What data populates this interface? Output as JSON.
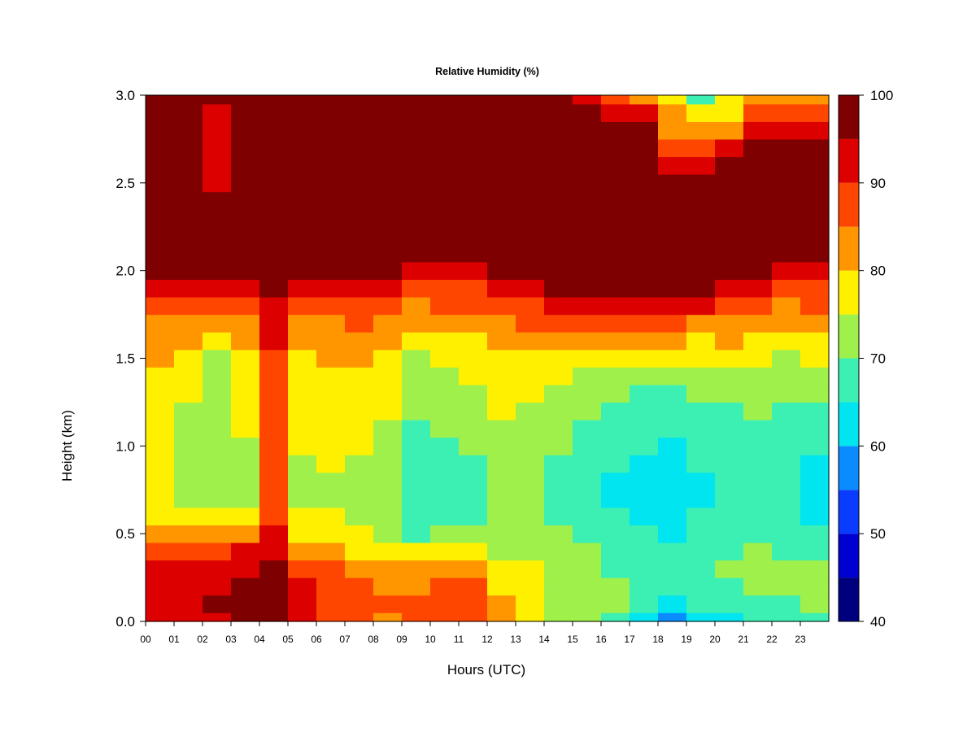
{
  "chart_data": {
    "type": "heatmap",
    "title": "Relative Humidity (%)",
    "xlabel": "Hours (UTC)",
    "ylabel": "Height (km)",
    "xlim": [
      0,
      24
    ],
    "ylim": [
      0,
      3
    ],
    "x_ticks": [
      0,
      1,
      2,
      3,
      4,
      5,
      6,
      7,
      8,
      9,
      10,
      11,
      12,
      13,
      14,
      15,
      16,
      17,
      18,
      19,
      20,
      21,
      22,
      23
    ],
    "x_tick_labels": [
      "00",
      "01",
      "02",
      "03",
      "04",
      "05",
      "06",
      "07",
      "08",
      "09",
      "10",
      "11",
      "12",
      "13",
      "14",
      "15",
      "16",
      "17",
      "18",
      "19",
      "20",
      "21",
      "22",
      "23"
    ],
    "y_ticks": [
      0,
      0.5,
      1,
      1.5,
      2,
      2.5,
      3
    ],
    "y_tick_labels": [
      "0.0",
      "0.5",
      "1.0",
      "1.5",
      "2.0",
      "2.5",
      "3.0"
    ],
    "colorbar": {
      "levels": [
        40,
        45,
        50,
        55,
        60,
        65,
        70,
        75,
        80,
        85,
        90,
        95,
        100
      ],
      "labels": [
        "40",
        "50",
        "60",
        "70",
        "80",
        "90",
        "100"
      ],
      "label_values": [
        40,
        50,
        60,
        70,
        80,
        90,
        100
      ],
      "colors": [
        "#00007f",
        "#0000d0",
        "#0a3cff",
        "#0a8cff",
        "#00e5f0",
        "#3cf0b4",
        "#a0f04b",
        "#fff000",
        "#ff9600",
        "#ff4600",
        "#dc0000",
        "#7f0000"
      ]
    },
    "height_levels_km": [
      0.0,
      0.1,
      0.2,
      0.3,
      0.4,
      0.5,
      0.6,
      0.7,
      0.8,
      0.9,
      1.0,
      1.1,
      1.2,
      1.3,
      1.4,
      1.5,
      1.6,
      1.7,
      1.8,
      1.9,
      2.0,
      2.1,
      2.2,
      2.3,
      2.4,
      2.5,
      2.6,
      2.7,
      2.8,
      2.9,
      3.0
    ],
    "hour_columns": [
      0,
      1,
      2,
      3,
      4,
      5,
      6,
      7,
      8,
      9,
      10,
      11,
      12,
      13,
      14,
      15,
      16,
      17,
      18,
      19,
      20,
      21,
      22,
      23
    ],
    "rh_profiles_percent": [
      [
        92,
        93,
        93,
        91,
        88,
        82,
        78,
        76,
        75,
        75,
        76,
        77,
        77,
        78,
        79,
        80,
        82,
        84,
        88,
        93,
        97,
        99,
        100,
        100,
        100,
        100,
        100,
        100,
        100,
        100,
        100
      ],
      [
        91,
        93,
        92,
        90,
        87,
        80,
        76,
        73,
        72,
        72,
        73,
        74,
        74,
        75,
        76,
        78,
        80,
        83,
        87,
        92,
        96,
        99,
        100,
        100,
        100,
        100,
        100,
        100,
        100,
        100,
        100
      ],
      [
        93,
        95,
        94,
        92,
        88,
        80,
        75,
        72,
        71,
        70,
        71,
        72,
        71,
        71,
        72,
        74,
        77,
        80,
        85,
        90,
        95,
        98,
        99,
        98,
        96,
        94,
        93,
        92,
        93,
        94,
        95
      ],
      [
        95,
        96,
        96,
        94,
        90,
        82,
        77,
        74,
        73,
        73,
        74,
        75,
        75,
        76,
        77,
        78,
        80,
        82,
        86,
        91,
        96,
        99,
        100,
        100,
        100,
        100,
        100,
        100,
        100,
        100,
        100
      ],
      [
        97,
        97,
        97,
        96,
        93,
        90,
        88,
        86,
        85,
        85,
        86,
        86,
        87,
        87,
        88,
        89,
        90,
        91,
        93,
        95,
        97,
        99,
        100,
        100,
        100,
        100,
        100,
        100,
        100,
        100,
        100
      ],
      [
        90,
        92,
        91,
        88,
        84,
        78,
        75,
        73,
        73,
        74,
        75,
        76,
        76,
        77,
        78,
        79,
        81,
        83,
        86,
        91,
        96,
        99,
        100,
        100,
        100,
        100,
        100,
        100,
        100,
        100,
        100
      ],
      [
        88,
        89,
        88,
        85,
        81,
        77,
        75,
        74,
        74,
        75,
        76,
        77,
        77,
        78,
        79,
        80,
        82,
        84,
        87,
        92,
        96,
        99,
        100,
        100,
        100,
        100,
        100,
        100,
        100,
        100,
        100
      ],
      [
        86,
        87,
        85,
        82,
        79,
        76,
        74,
        73,
        73,
        74,
        75,
        76,
        77,
        78,
        79,
        80,
        82,
        85,
        88,
        92,
        96,
        99,
        100,
        100,
        100,
        100,
        100,
        100,
        100,
        100,
        100
      ],
      [
        84,
        85,
        83,
        80,
        77,
        74,
        72,
        71,
        71,
        72,
        73,
        74,
        75,
        76,
        77,
        79,
        81,
        83,
        86,
        90,
        95,
        98,
        100,
        100,
        100,
        100,
        100,
        100,
        100,
        100,
        100
      ],
      [
        86,
        87,
        84,
        80,
        75,
        69,
        66,
        65,
        65,
        66,
        68,
        69,
        70,
        71,
        72,
        74,
        77,
        80,
        84,
        88,
        93,
        97,
        99,
        100,
        100,
        100,
        100,
        100,
        100,
        100,
        100
      ],
      [
        89,
        89,
        86,
        81,
        76,
        70,
        68,
        67,
        67,
        68,
        69,
        70,
        71,
        72,
        74,
        76,
        78,
        81,
        85,
        89,
        94,
        98,
        100,
        100,
        100,
        100,
        100,
        100,
        100,
        100,
        100
      ],
      [
        88,
        88,
        85,
        80,
        75,
        71,
        69,
        68,
        68,
        69,
        70,
        71,
        72,
        73,
        75,
        77,
        79,
        82,
        85,
        89,
        94,
        98,
        100,
        100,
        100,
        100,
        100,
        100,
        100,
        100,
        100
      ],
      [
        84,
        82,
        79,
        76,
        74,
        72,
        71,
        70,
        71,
        72,
        73,
        74,
        75,
        76,
        77,
        79,
        81,
        84,
        87,
        92,
        96,
        99,
        100,
        100,
        100,
        100,
        100,
        100,
        100,
        100,
        100
      ],
      [
        78,
        78,
        77,
        75,
        73,
        71,
        70,
        70,
        70,
        71,
        72,
        73,
        74,
        75,
        77,
        79,
        82,
        85,
        89,
        94,
        97,
        99,
        100,
        100,
        100,
        100,
        100,
        100,
        100,
        100,
        100
      ],
      [
        72,
        74,
        74,
        73,
        72,
        70,
        69,
        68,
        68,
        69,
        70,
        71,
        72,
        73,
        75,
        78,
        82,
        86,
        91,
        95,
        98,
        100,
        100,
        100,
        100,
        100,
        100,
        100,
        100,
        100,
        100
      ],
      [
        70,
        72,
        72,
        71,
        70,
        68,
        67,
        66,
        66,
        67,
        68,
        69,
        70,
        72,
        74,
        78,
        84,
        89,
        94,
        97,
        99,
        100,
        100,
        100,
        100,
        100,
        100,
        100,
        98,
        95,
        90
      ],
      [
        67,
        70,
        70,
        69,
        68,
        66,
        65,
        64,
        64,
        65,
        66,
        67,
        68,
        70,
        73,
        77,
        83,
        88,
        94,
        98,
        100,
        100,
        100,
        100,
        100,
        100,
        100,
        99,
        97,
        93,
        86
      ],
      [
        62,
        66,
        68,
        68,
        67,
        65,
        64,
        63,
        63,
        64,
        65,
        66,
        67,
        69,
        72,
        76,
        82,
        88,
        93,
        98,
        100,
        100,
        100,
        100,
        100,
        100,
        100,
        99,
        96,
        90,
        80
      ],
      [
        58,
        63,
        66,
        67,
        66,
        64,
        63,
        62,
        62,
        63,
        64,
        66,
        67,
        69,
        72,
        75,
        80,
        86,
        92,
        97,
        99,
        100,
        100,
        100,
        100,
        98,
        94,
        88,
        84,
        80,
        75
      ],
      [
        61,
        65,
        67,
        68,
        67,
        66,
        65,
        64,
        64,
        65,
        66,
        67,
        68,
        70,
        72,
        75,
        79,
        84,
        90,
        95,
        99,
        100,
        100,
        100,
        99,
        96,
        91,
        85,
        80,
        75,
        68
      ],
      [
        63,
        67,
        69,
        70,
        69,
        67,
        66,
        65,
        65,
        66,
        67,
        68,
        69,
        71,
        73,
        76,
        80,
        84,
        88,
        93,
        97,
        99,
        100,
        100,
        100,
        99,
        96,
        90,
        84,
        79,
        76
      ],
      [
        65,
        68,
        70,
        71,
        70,
        68,
        67,
        66,
        66,
        67,
        68,
        69,
        70,
        71,
        73,
        75,
        78,
        81,
        85,
        90,
        95,
        98,
        100,
        100,
        100,
        100,
        100,
        97,
        92,
        86,
        82
      ],
      [
        66,
        69,
        70,
        70,
        69,
        67,
        66,
        65,
        65,
        66,
        67,
        68,
        69,
        71,
        72,
        74,
        77,
        80,
        84,
        89,
        94,
        98,
        100,
        100,
        100,
        100,
        100,
        98,
        94,
        88,
        83
      ],
      [
        67,
        70,
        70,
        70,
        69,
        66,
        64,
        63,
        63,
        64,
        65,
        67,
        69,
        71,
        73,
        75,
        78,
        81,
        85,
        89,
        94,
        98,
        100,
        100,
        100,
        100,
        100,
        98,
        94,
        88,
        83
      ]
    ]
  }
}
